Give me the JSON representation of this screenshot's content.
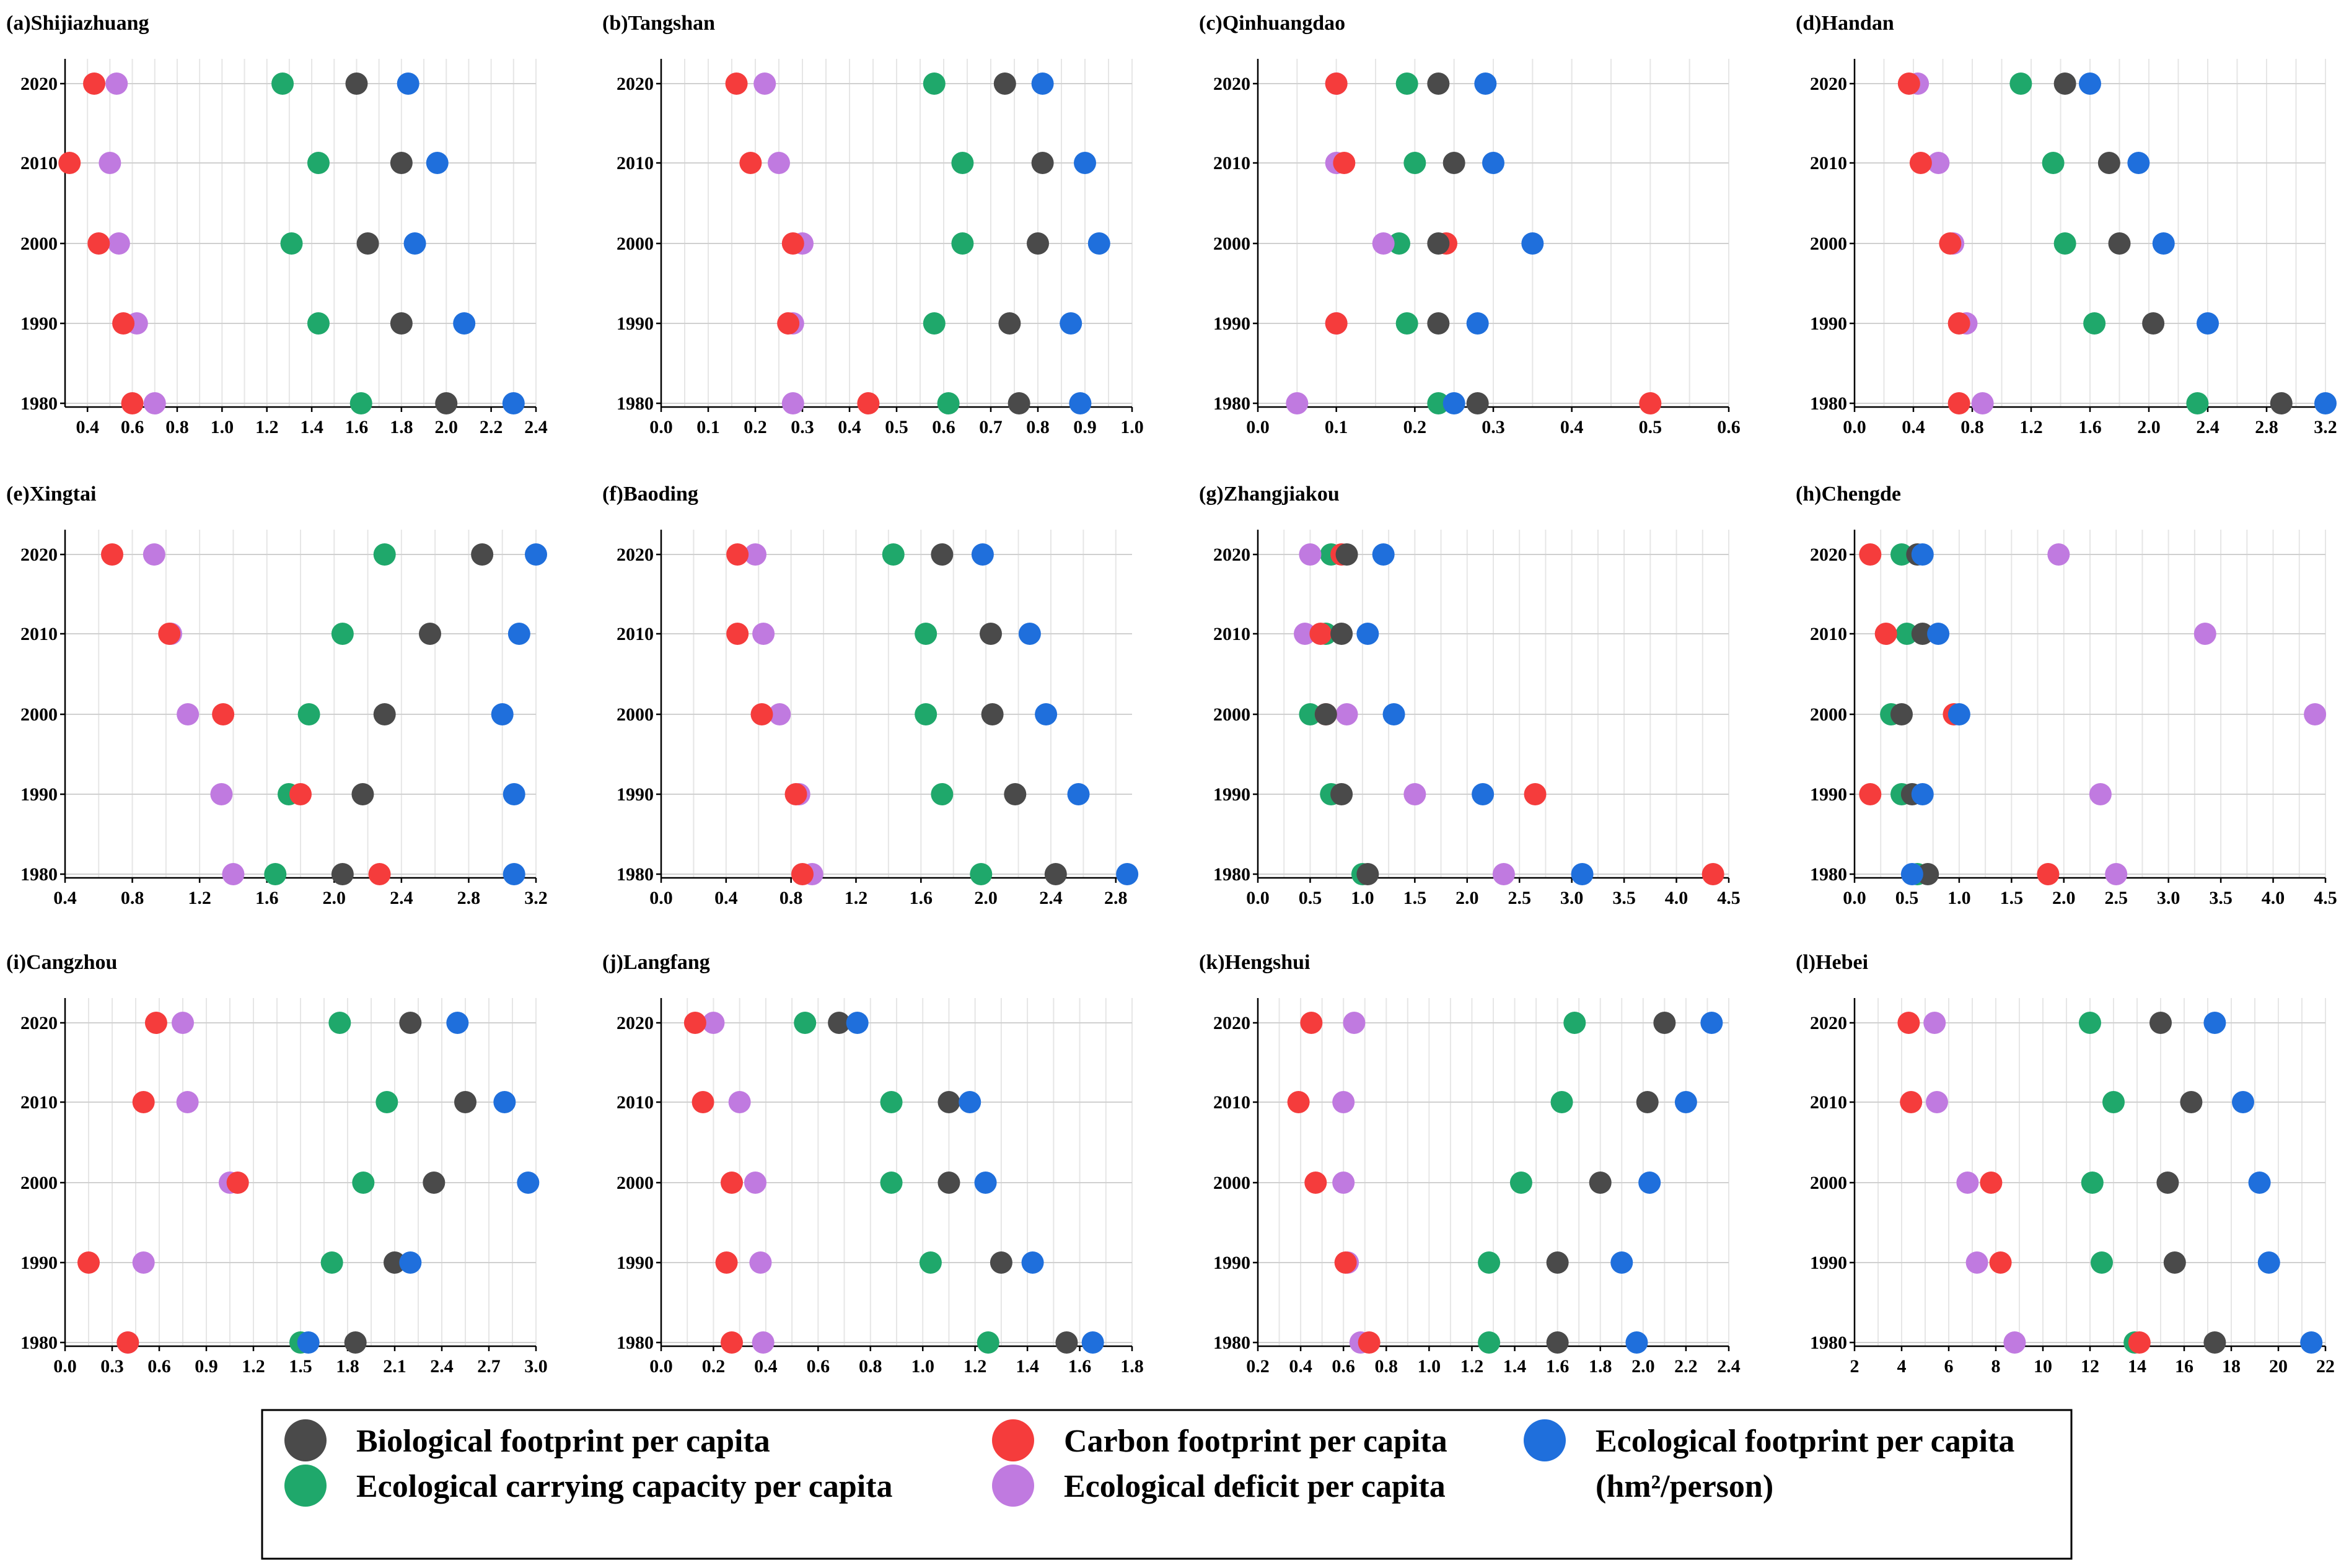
{
  "chart_data": {
    "type": "scatter",
    "years": [
      "2020",
      "2010",
      "2000",
      "1990",
      "1980"
    ],
    "series_colors": {
      "Biological footprint per capita": "#4a4a4a",
      "Carbon footprint per capita": "#f53c3c",
      "Ecological footprint per capita": "#1f6fdc",
      "Ecological carrying capacity per capita": "#1fa86b",
      "Ecological deficit per capita": "#c07ae0"
    },
    "legend": {
      "items": [
        {
          "label": "Biological footprint per capita",
          "color": "#4a4a4a"
        },
        {
          "label": "Ecological carrying capacity per capita",
          "color": "#1fa86b"
        },
        {
          "label": "Carbon footprint per capita",
          "color": "#f53c3c"
        },
        {
          "label": "Ecological deficit per capita",
          "color": "#c07ae0"
        },
        {
          "label": "Ecological footprint per capita",
          "color": "#1f6fdc"
        }
      ],
      "unit": "(hm²/person)"
    },
    "panels": [
      {
        "title": "(a)Shijiazhuang",
        "xlim": [
          0.3,
          2.4
        ],
        "xticks": [
          "0.4",
          "0.6",
          "0.8",
          "1.0",
          "1.2",
          "1.4",
          "1.6",
          "1.8",
          "2.0",
          "2.2",
          "2.4"
        ],
        "bio": [
          1.6,
          1.8,
          1.65,
          1.8,
          2.0
        ],
        "carbon": [
          0.43,
          0.32,
          0.45,
          0.56,
          0.6
        ],
        "eco": [
          1.83,
          1.96,
          1.86,
          2.08,
          2.3
        ],
        "cap": [
          1.27,
          1.43,
          1.31,
          1.43,
          1.62
        ],
        "def": [
          0.53,
          0.5,
          0.54,
          0.62,
          0.7
        ]
      },
      {
        "title": "(b)Tangshan",
        "xlim": [
          0.0,
          1.0
        ],
        "xticks": [
          "0.0",
          "0.1",
          "0.2",
          "0.3",
          "0.4",
          "0.5",
          "0.6",
          "0.7",
          "0.8",
          "0.9",
          "1.0"
        ],
        "bio": [
          0.73,
          0.81,
          0.8,
          0.74,
          0.76
        ],
        "carbon": [
          0.16,
          0.19,
          0.28,
          0.27,
          0.44
        ],
        "eco": [
          0.81,
          0.9,
          0.93,
          0.87,
          0.89
        ],
        "cap": [
          0.58,
          0.64,
          0.64,
          0.58,
          0.61
        ],
        "def": [
          0.22,
          0.25,
          0.3,
          0.28,
          0.28
        ]
      },
      {
        "title": "(c)Qinhuangdao",
        "xlim": [
          0.0,
          0.6
        ],
        "xticks": [
          "0.0",
          "0.1",
          "0.2",
          "0.3",
          "0.4",
          "0.5",
          "0.6"
        ],
        "bio": [
          0.23,
          0.25,
          0.23,
          0.23,
          0.28
        ],
        "carbon": [
          0.1,
          0.11,
          0.24,
          0.1,
          0.5
        ],
        "eco": [
          0.29,
          0.3,
          0.35,
          0.28,
          0.25
        ],
        "cap": [
          0.19,
          0.2,
          0.18,
          0.19,
          0.23
        ],
        "def": [
          0.1,
          0.1,
          0.16,
          0.1,
          0.05
        ]
      },
      {
        "title": "(d)Handan",
        "xlim": [
          0.0,
          3.2
        ],
        "xticks": [
          "0.0",
          "0.4",
          "0.8",
          "1.2",
          "1.6",
          "2.0",
          "2.4",
          "2.8",
          "3.2"
        ],
        "bio": [
          1.43,
          1.73,
          1.8,
          2.03,
          2.9
        ],
        "carbon": [
          0.37,
          0.45,
          0.65,
          0.71,
          0.71
        ],
        "eco": [
          1.6,
          1.93,
          2.1,
          2.4,
          3.2
        ],
        "cap": [
          1.13,
          1.35,
          1.43,
          1.63,
          2.33
        ],
        "def": [
          0.43,
          0.57,
          0.67,
          0.76,
          0.87
        ]
      },
      {
        "title": "(e)Xingtai",
        "xlim": [
          0.4,
          3.2
        ],
        "xticks": [
          "0.4",
          "0.8",
          "1.2",
          "1.6",
          "2.0",
          "2.4",
          "2.8",
          "3.2"
        ],
        "bio": [
          2.88,
          2.57,
          2.3,
          2.17,
          2.05
        ],
        "carbon": [
          0.68,
          1.02,
          1.34,
          1.8,
          2.27
        ],
        "eco": [
          3.2,
          3.1,
          3.0,
          3.07,
          3.07
        ],
        "cap": [
          2.3,
          2.05,
          1.85,
          1.73,
          1.65
        ],
        "def": [
          0.93,
          1.03,
          1.13,
          1.33,
          1.4
        ]
      },
      {
        "title": "(f)Baoding",
        "xlim": [
          0.0,
          2.9
        ],
        "xticks": [
          "0.0",
          "0.4",
          "0.8",
          "1.2",
          "1.6",
          "2.0",
          "2.4",
          "2.8"
        ],
        "bio": [
          1.73,
          2.03,
          2.04,
          2.18,
          2.43
        ],
        "carbon": [
          0.47,
          0.47,
          0.62,
          0.83,
          0.87
        ],
        "eco": [
          1.98,
          2.27,
          2.37,
          2.57,
          2.87
        ],
        "cap": [
          1.43,
          1.63,
          1.63,
          1.73,
          1.97
        ],
        "def": [
          0.58,
          0.63,
          0.73,
          0.85,
          0.93
        ]
      },
      {
        "title": "(g)Zhangjiakou",
        "xlim": [
          0.0,
          4.5
        ],
        "xticks": [
          "0.0",
          "0.5",
          "1.0",
          "1.5",
          "2.0",
          "2.5",
          "3.0",
          "3.5",
          "4.0",
          "4.5"
        ],
        "bio": [
          0.85,
          0.8,
          0.65,
          0.8,
          1.05
        ],
        "carbon": [
          0.8,
          0.6,
          0.65,
          2.65,
          4.35
        ],
        "eco": [
          1.2,
          1.05,
          1.3,
          2.15,
          3.1
        ],
        "cap": [
          0.7,
          0.65,
          0.5,
          0.7,
          1.0
        ],
        "def": [
          0.5,
          0.45,
          0.85,
          1.5,
          2.35
        ]
      },
      {
        "title": "(h)Chengde",
        "xlim": [
          0.0,
          4.5
        ],
        "xticks": [
          "0.0",
          "0.5",
          "1.0",
          "1.5",
          "2.0",
          "2.5",
          "3.0",
          "3.5",
          "4.0",
          "4.5"
        ],
        "bio": [
          0.6,
          0.65,
          0.45,
          0.55,
          0.7
        ],
        "carbon": [
          0.15,
          0.3,
          0.95,
          0.15,
          1.85
        ],
        "eco": [
          0.65,
          0.8,
          1.0,
          0.65,
          0.55
        ],
        "cap": [
          0.45,
          0.5,
          0.35,
          0.45,
          0.6
        ],
        "def": [
          1.95,
          3.35,
          4.4,
          2.35,
          2.5
        ]
      },
      {
        "title": "(i)Cangzhou",
        "xlim": [
          0.0,
          3.0
        ],
        "xticks": [
          "0.0",
          "0.3",
          "0.6",
          "0.9",
          "1.2",
          "1.5",
          "1.8",
          "2.1",
          "2.4",
          "2.7",
          "3.0"
        ],
        "bio": [
          2.2,
          2.55,
          2.35,
          2.1,
          1.85
        ],
        "carbon": [
          0.58,
          0.5,
          1.1,
          0.15,
          0.4
        ],
        "eco": [
          2.5,
          2.8,
          2.95,
          2.2,
          1.55
        ],
        "cap": [
          1.75,
          2.05,
          1.9,
          1.7,
          1.5
        ],
        "def": [
          0.75,
          0.78,
          1.05,
          0.5,
          0.4
        ]
      },
      {
        "title": "(j)Langfang",
        "xlim": [
          0.0,
          1.8
        ],
        "xticks": [
          "0.0",
          "0.2",
          "0.4",
          "0.6",
          "0.8",
          "1.0",
          "1.2",
          "1.4",
          "1.6",
          "1.8"
        ],
        "bio": [
          0.68,
          1.1,
          1.1,
          1.3,
          1.55
        ],
        "carbon": [
          0.13,
          0.16,
          0.27,
          0.25,
          0.27
        ],
        "eco": [
          0.75,
          1.18,
          1.24,
          1.42,
          1.65
        ],
        "cap": [
          0.55,
          0.88,
          0.88,
          1.03,
          1.25
        ],
        "def": [
          0.2,
          0.3,
          0.36,
          0.38,
          0.39
        ]
      },
      {
        "title": "(k)Hengshui",
        "xlim": [
          0.2,
          2.4
        ],
        "xticks": [
          "0.2",
          "0.4",
          "0.6",
          "0.8",
          "1.0",
          "1.2",
          "1.4",
          "1.6",
          "1.8",
          "2.0",
          "2.2",
          "2.4"
        ],
        "bio": [
          2.1,
          2.02,
          1.8,
          1.6,
          1.6
        ],
        "carbon": [
          0.45,
          0.39,
          0.47,
          0.61,
          0.72
        ],
        "eco": [
          2.32,
          2.2,
          2.03,
          1.9,
          1.97
        ],
        "cap": [
          1.68,
          1.62,
          1.43,
          1.28,
          1.28
        ],
        "def": [
          0.65,
          0.6,
          0.6,
          0.62,
          0.68
        ]
      },
      {
        "title": "(l)Hebei",
        "xlim": [
          2,
          22
        ],
        "xticks": [
          "2",
          "4",
          "6",
          "8",
          "10",
          "12",
          "14",
          "16",
          "18",
          "20",
          "22"
        ],
        "bio": [
          15.0,
          16.3,
          15.3,
          15.6,
          17.3
        ],
        "carbon": [
          4.3,
          4.4,
          7.8,
          8.2,
          14.1
        ],
        "eco": [
          17.3,
          18.5,
          19.2,
          19.6,
          21.4
        ],
        "cap": [
          12.0,
          13.0,
          12.1,
          12.5,
          13.9
        ],
        "def": [
          5.4,
          5.5,
          6.8,
          7.2,
          8.8
        ]
      }
    ]
  }
}
